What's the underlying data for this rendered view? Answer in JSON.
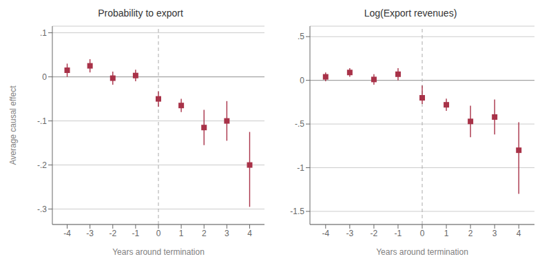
{
  "chart_data": [
    {
      "type": "scatter",
      "title": "Probability to export",
      "xlabel": "Years around termination",
      "ylabel": "Average causal effect",
      "x": [
        -4,
        -3,
        -2,
        -1,
        0,
        1,
        2,
        3,
        4
      ],
      "values": [
        0.015,
        0.025,
        -0.003,
        0.003,
        -0.05,
        -0.065,
        -0.115,
        -0.1,
        -0.2
      ],
      "y_lo": [
        0.0,
        0.01,
        -0.018,
        -0.01,
        -0.068,
        -0.08,
        -0.155,
        -0.145,
        -0.295
      ],
      "y_hi": [
        0.03,
        0.04,
        0.012,
        0.016,
        -0.033,
        -0.05,
        -0.075,
        -0.055,
        -0.125
      ],
      "color": "#a83248",
      "marker": "square",
      "xlim": [
        -4.65,
        4.65
      ],
      "xticks": [
        -4,
        -3,
        -2,
        -1,
        0,
        1,
        2,
        3,
        4
      ],
      "ylim": [
        -0.335,
        0.115
      ],
      "yticks": [
        {
          "value": 0.1,
          "label": ".1"
        },
        0,
        {
          "value": -0.1,
          "label": "-.1"
        },
        {
          "value": -0.2,
          "label": "-.2"
        },
        {
          "value": -0.3,
          "label": "-.3"
        }
      ],
      "grid": true
    },
    {
      "type": "scatter",
      "title": "Log(Export revenues)",
      "xlabel": "Years around termination",
      "x": [
        -4,
        -3,
        -2,
        -1,
        0,
        1,
        2,
        3,
        4
      ],
      "values": [
        0.04,
        0.09,
        0.01,
        0.07,
        -0.2,
        -0.28,
        -0.47,
        -0.42,
        -0.8
      ],
      "y_lo": [
        -0.01,
        0.04,
        -0.05,
        0.0,
        -0.27,
        -0.35,
        -0.65,
        -0.62,
        -1.3
      ],
      "y_hi": [
        0.09,
        0.14,
        0.07,
        0.14,
        -0.06,
        -0.21,
        -0.29,
        -0.22,
        -0.48
      ],
      "color": "#a83248",
      "marker": "square",
      "xlim": [
        -4.65,
        4.65
      ],
      "xticks": [
        -4,
        -3,
        -2,
        -1,
        0,
        1,
        2,
        3,
        4
      ],
      "ylim": [
        -1.65,
        0.62
      ],
      "yticks": [
        {
          "value": 0.5,
          "label": ".5"
        },
        0,
        {
          "value": -0.5,
          "label": "-.5"
        },
        -1,
        -1.5
      ],
      "grid": true
    }
  ]
}
